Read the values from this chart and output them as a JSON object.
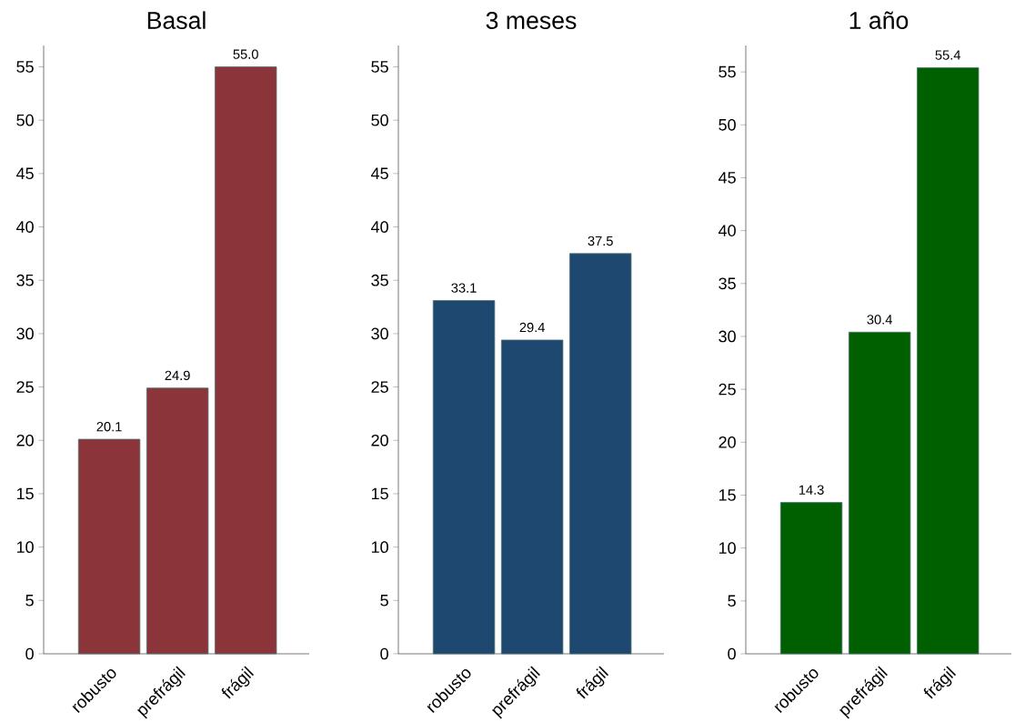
{
  "chart_data": [
    {
      "type": "bar",
      "title": "Basal",
      "categories": [
        "robusto",
        "prefrágil",
        "frágil"
      ],
      "values": [
        20.1,
        24.9,
        55.0
      ],
      "value_labels": [
        "20.1",
        "24.9",
        "55.0"
      ],
      "color": "#8b353b",
      "ylim": [
        0,
        57
      ],
      "yticks": [
        0,
        5,
        10,
        15,
        20,
        25,
        30,
        35,
        40,
        45,
        50,
        55
      ]
    },
    {
      "type": "bar",
      "title": "3 meses",
      "categories": [
        "robusto",
        "prefrágil",
        "frágil"
      ],
      "values": [
        33.1,
        29.4,
        37.5
      ],
      "value_labels": [
        "33.1",
        "29.4",
        "37.5"
      ],
      "color": "#1e4870",
      "ylim": [
        0,
        57
      ],
      "yticks": [
        0,
        5,
        10,
        15,
        20,
        25,
        30,
        35,
        40,
        45,
        50,
        55
      ]
    },
    {
      "type": "bar",
      "title": "1 año",
      "categories": [
        "robusto",
        "prefrágil",
        "frágil"
      ],
      "values": [
        14.3,
        30.4,
        55.4
      ],
      "value_labels": [
        "14.3",
        "30.4",
        "55.4"
      ],
      "color": "#006000",
      "ylim": [
        0,
        57.5
      ],
      "yticks": [
        0,
        5,
        10,
        15,
        20,
        25,
        30,
        35,
        40,
        45,
        50,
        55
      ]
    }
  ]
}
